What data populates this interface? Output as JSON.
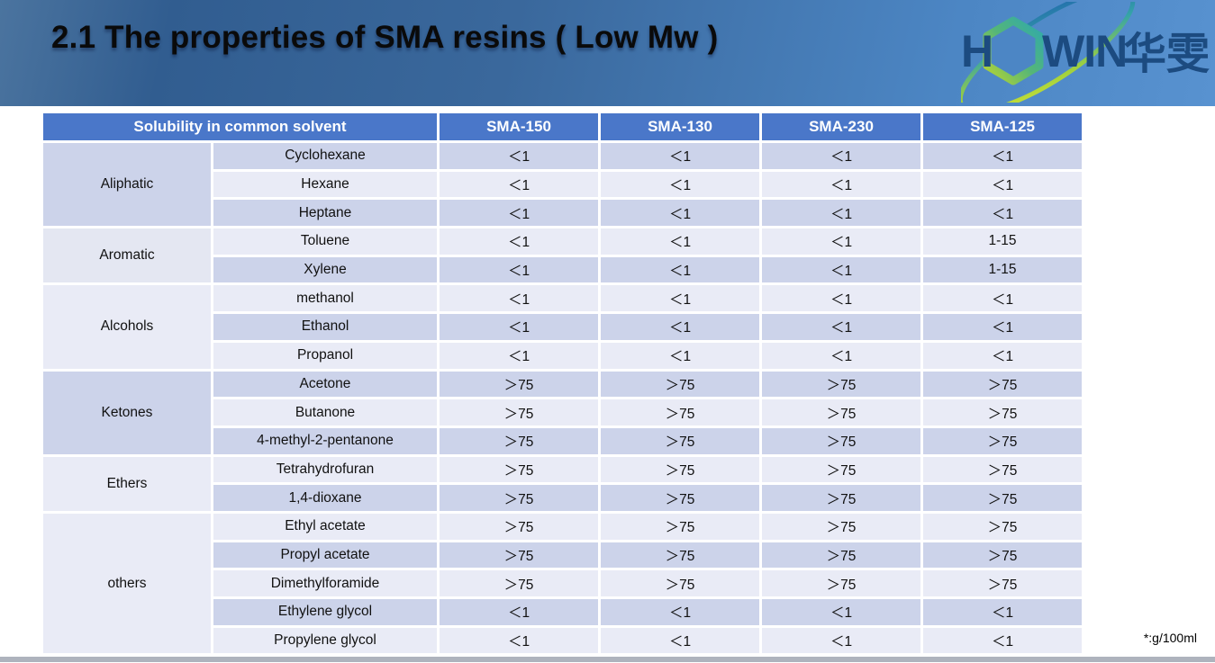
{
  "header": {
    "title": "2.1 The properties of SMA resins ( Low Mw )"
  },
  "logo": {
    "part1": "H",
    "part2": "WIN",
    "cjk": "华雯",
    "text_color": "#1c4b80",
    "hexagon_gradient": [
      "#2fa9ad",
      "#b8d531"
    ],
    "swoosh_gradient": [
      "#dce630",
      "#2066ad"
    ]
  },
  "table": {
    "header_group_label": "Solubility in common solvent",
    "product_columns": [
      "SMA-150",
      "SMA-130",
      "SMA-230",
      "SMA-125"
    ],
    "groups": [
      {
        "category": "Aliphatic",
        "shade": "dark",
        "rows": [
          {
            "solvent": "Cyclohexane",
            "values": [
              "＜1",
              "＜1",
              "＜1",
              "＜1"
            ]
          },
          {
            "solvent": "Hexane",
            "values": [
              "＜1",
              "＜1",
              "＜1",
              "＜1"
            ]
          },
          {
            "solvent": "Heptane",
            "values": [
              "＜1",
              "＜1",
              "＜1",
              "＜1"
            ]
          }
        ]
      },
      {
        "category": "Aromatic",
        "shade": "mid",
        "rows": [
          {
            "solvent": "Toluene",
            "values": [
              "＜1",
              "＜1",
              "＜1",
              "1-15"
            ]
          },
          {
            "solvent": "Xylene",
            "values": [
              "＜1",
              "＜1",
              "＜1",
              "1-15"
            ]
          }
        ]
      },
      {
        "category": "Alcohols",
        "shade": "light",
        "rows": [
          {
            "solvent": "methanol",
            "values": [
              "＜1",
              "＜1",
              "＜1",
              "＜1"
            ]
          },
          {
            "solvent": "Ethanol",
            "values": [
              "＜1",
              "＜1",
              "＜1",
              "＜1"
            ]
          },
          {
            "solvent": "Propanol",
            "values": [
              "＜1",
              "＜1",
              "＜1",
              "＜1"
            ]
          }
        ]
      },
      {
        "category": "Ketones",
        "shade": "dark",
        "rows": [
          {
            "solvent": "Acetone",
            "values": [
              "＞75",
              "＞75",
              "＞75",
              "＞75"
            ]
          },
          {
            "solvent": "Butanone",
            "values": [
              "＞75",
              "＞75",
              "＞75",
              "＞75"
            ]
          },
          {
            "solvent": "4-methyl-2-pentanone",
            "values": [
              "＞75",
              "＞75",
              "＞75",
              "＞75"
            ]
          }
        ]
      },
      {
        "category": "Ethers",
        "shade": "light",
        "rows": [
          {
            "solvent": "Tetrahydrofuran",
            "values": [
              "＞75",
              "＞75",
              "＞75",
              "＞75"
            ]
          },
          {
            "solvent": "1,4-dioxane",
            "values": [
              "＞75",
              "＞75",
              "＞75",
              "＞75"
            ]
          }
        ]
      },
      {
        "category": "others",
        "shade": "light",
        "rows": [
          {
            "solvent": "Ethyl acetate",
            "values": [
              "＞75",
              "＞75",
              "＞75",
              "＞75"
            ]
          },
          {
            "solvent": "Propyl acetate",
            "values": [
              "＞75",
              "＞75",
              "＞75",
              "＞75"
            ]
          },
          {
            "solvent": "Dimethylforamide",
            "values": [
              "＞75",
              "＞75",
              "＞75",
              "＞75"
            ]
          },
          {
            "solvent": "Ethylene glycol",
            "values": [
              "＜1",
              "＜1",
              "＜1",
              "＜1"
            ]
          },
          {
            "solvent": "Propylene glycol",
            "values": [
              "＜1",
              "＜1",
              "＜1",
              "＜1"
            ]
          }
        ]
      }
    ]
  },
  "footnote": "*:g/100ml",
  "colors": {
    "table_header_bg": "#4a77c9",
    "row_dark": "#ccd3ea",
    "row_light": "#e9ebf6",
    "banner_blue": "#3a689c",
    "bottom_bar": "#aeb3bd"
  }
}
